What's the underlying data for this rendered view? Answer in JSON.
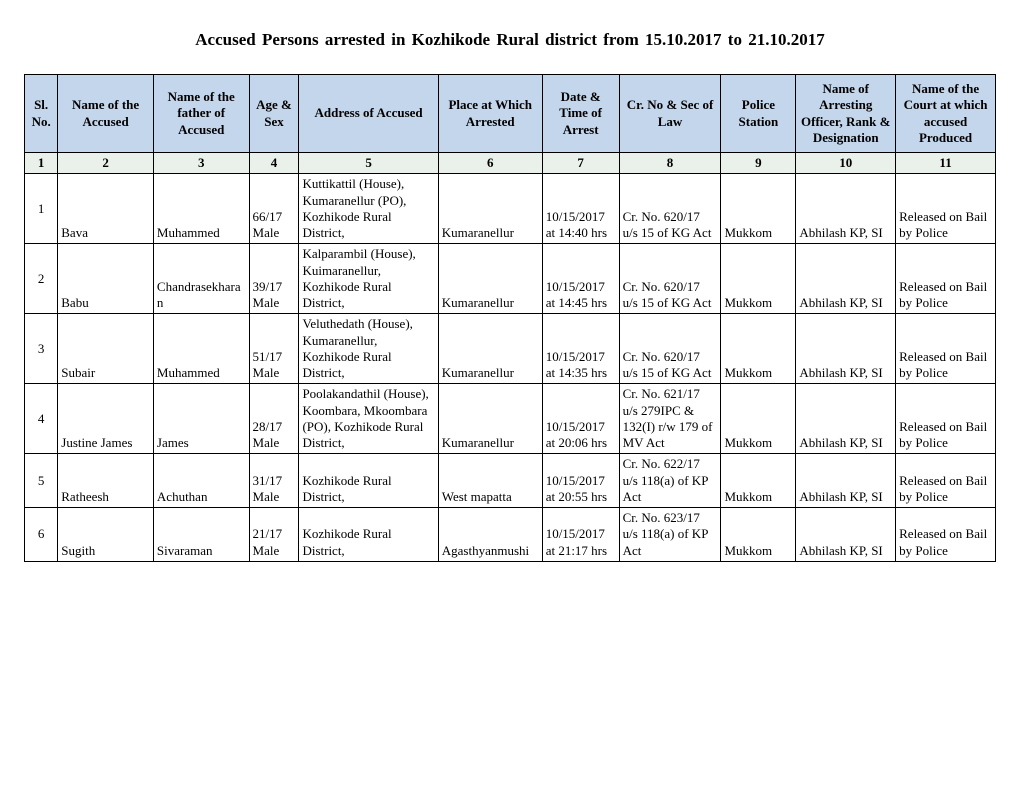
{
  "title": "Accused Persons arrested in    Kozhikode Rural   district from    15.10.2017 to 21.10.2017",
  "headers": [
    "Sl. No.",
    "Name of the Accused",
    "Name of the father of Accused",
    "Age & Sex",
    "Address of Accused",
    "Place at Which Arrested",
    "Date & Time of Arrest",
    "Cr. No & Sec of Law",
    "Police Station",
    "Name of Arresting Officer, Rank & Designation",
    "Name of the Court at which accused Produced"
  ],
  "numrow": [
    "1",
    "2",
    "3",
    "4",
    "5",
    "6",
    "7",
    "8",
    "9",
    "10",
    "11"
  ],
  "rows": [
    {
      "sl": "1",
      "accused": "Bava",
      "father": "Muhammed",
      "age": "66/17 Male",
      "address": "Kuttikattil (House), Kumaranellur (PO), Kozhikode Rural District,",
      "place": "Kumaranellur",
      "datetime": "10/15/2017 at  14:40 hrs",
      "crno": "Cr. No. 620/17 u/s 15 of KG Act",
      "station": "Mukkom",
      "officer": "Abhilash KP, SI",
      "court": "Released on Bail by Police"
    },
    {
      "sl": "2",
      "accused": "Babu",
      "father": "Chandrasekharan",
      "age": "39/17 Male",
      "address": "Kalparambil (House), Kuimaranellur, Kozhikode Rural District,",
      "place": "Kumaranellur",
      "datetime": "10/15/2017 at  14:45 hrs",
      "crno": "Cr. No. 620/17 u/s 15 of KG Act",
      "station": "Mukkom",
      "officer": "Abhilash KP, SI",
      "court": "Released on Bail by Police"
    },
    {
      "sl": "3",
      "accused": "Subair",
      "father": "Muhammed",
      "age": "51/17 Male",
      "address": "Veluthedath (House), Kumaranellur, Kozhikode Rural District,",
      "place": "Kumaranellur",
      "datetime": "10/15/2017 at  14:35 hrs",
      "crno": "Cr. No. 620/17 u/s 15 of KG Act",
      "station": "Mukkom",
      "officer": "Abhilash KP, SI",
      "court": "Released on Bail by Police"
    },
    {
      "sl": "4",
      "accused": "Justine James",
      "father": "James",
      "age": "28/17 Male",
      "address": "Poolakandathil (House), Koombara, Mkoombara (PO), Kozhikode Rural District,",
      "place": "Kumaranellur",
      "datetime": "10/15/2017 at  20:06 hrs",
      "crno": "Cr. No. 621/17 u/s 279IPC & 132(I) r/w 179 of MV Act",
      "station": "Mukkom",
      "officer": "Abhilash KP, SI",
      "court": "Released on Bail by Police"
    },
    {
      "sl": "5",
      "accused": "Ratheesh",
      "father": "Achuthan",
      "age": "31/17 Male",
      "address": "Kozhikode Rural District,",
      "place": "West mapatta",
      "datetime": "10/15/2017 at  20:55 hrs",
      "crno": "Cr. No. 622/17 u/s 118(a) of KP Act",
      "station": "Mukkom",
      "officer": "Abhilash KP, SI",
      "court": "Released on Bail by Police"
    },
    {
      "sl": "6",
      "accused": "Sugith",
      "father": "Sivaraman",
      "age": "21/17 Male",
      "address": "Kozhikode Rural District,",
      "place": "Agasthyanmushi",
      "datetime": "10/15/2017 at  21:17 hrs",
      "crno": "Cr. No. 623/17 u/s 118(a) of KP Act",
      "station": "Mukkom",
      "officer": "Abhilash KP, SI",
      "court": "Released on Bail by Police"
    }
  ],
  "colors": {
    "header_bg": "#c4d6eb",
    "numrow_bg": "#e9f1ea",
    "border": "#000000",
    "text": "#000000",
    "page_bg": "#ffffff"
  }
}
